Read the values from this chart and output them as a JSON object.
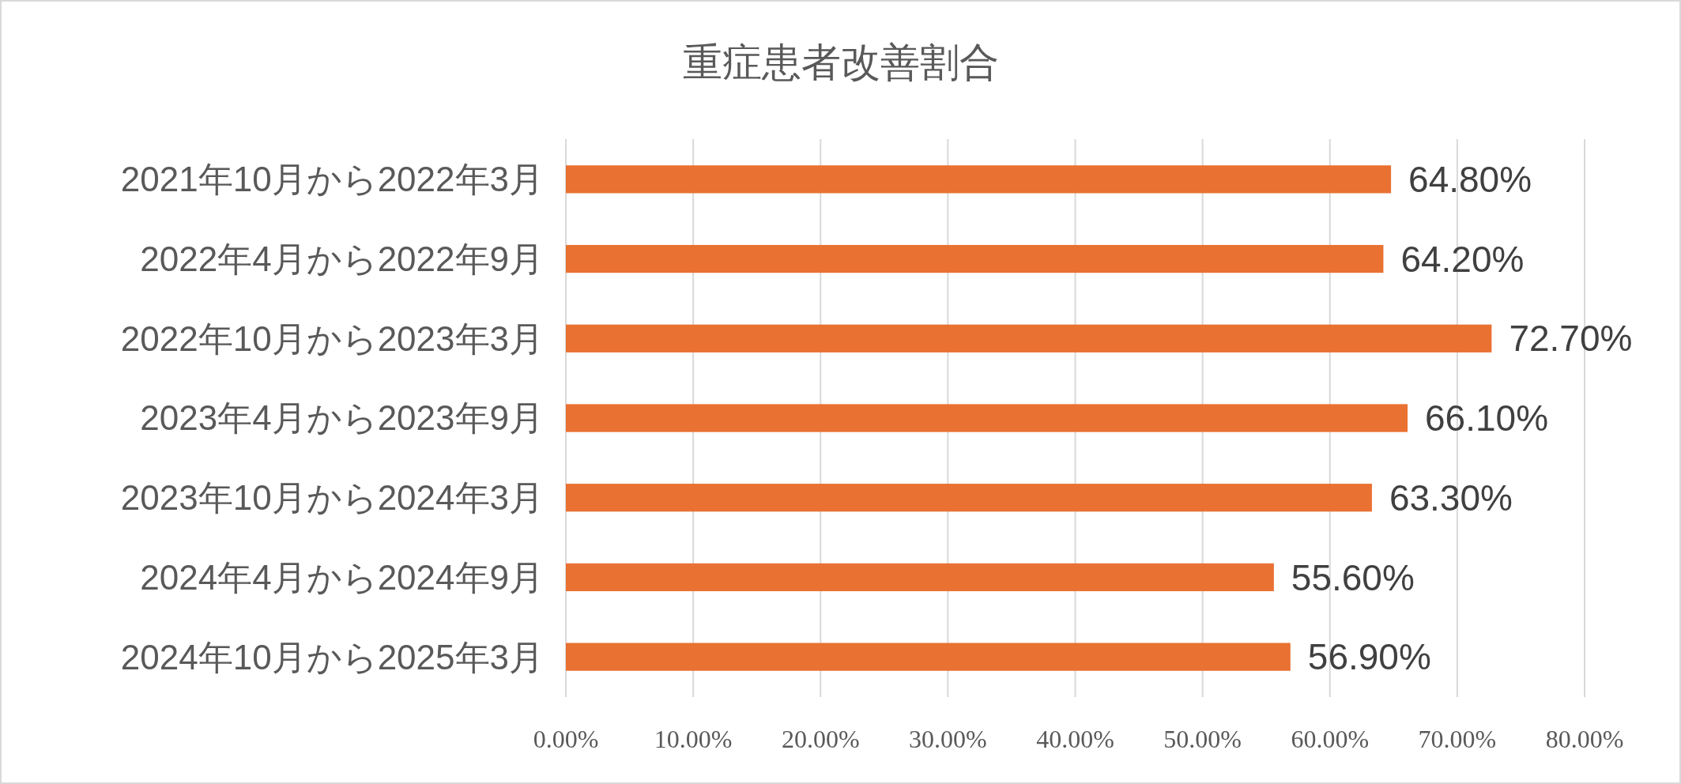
{
  "chart_data": {
    "type": "bar",
    "orientation": "horizontal",
    "title": "重症患者改善割合",
    "categories": [
      "2021年10月から2022年3月",
      "2022年4月から2022年9月",
      "2022年10月から2023年3月",
      "2023年4月から2023年9月",
      "2023年10月から2024年3月",
      "2024年4月から2024年9月",
      "2024年10月から2025年3月"
    ],
    "values": [
      64.8,
      64.2,
      72.7,
      66.1,
      63.3,
      55.6,
      56.9
    ],
    "value_labels": [
      "64.80%",
      "64.20%",
      "72.70%",
      "66.10%",
      "63.30%",
      "55.60%",
      "56.90%"
    ],
    "color": "#e97132",
    "xlim": [
      0,
      80
    ],
    "xticks": [
      {
        "value": 0,
        "label": "0.00%"
      },
      {
        "value": 10,
        "label": "10.00%"
      },
      {
        "value": 20,
        "label": "20.00%"
      },
      {
        "value": 30,
        "label": "30.00%"
      },
      {
        "value": 40,
        "label": "40.00%"
      },
      {
        "value": 50,
        "label": "50.00%"
      },
      {
        "value": 60,
        "label": "60.00%"
      },
      {
        "value": 70,
        "label": "70.00%"
      },
      {
        "value": 80,
        "label": "80.00%"
      }
    ],
    "grid": "x"
  }
}
